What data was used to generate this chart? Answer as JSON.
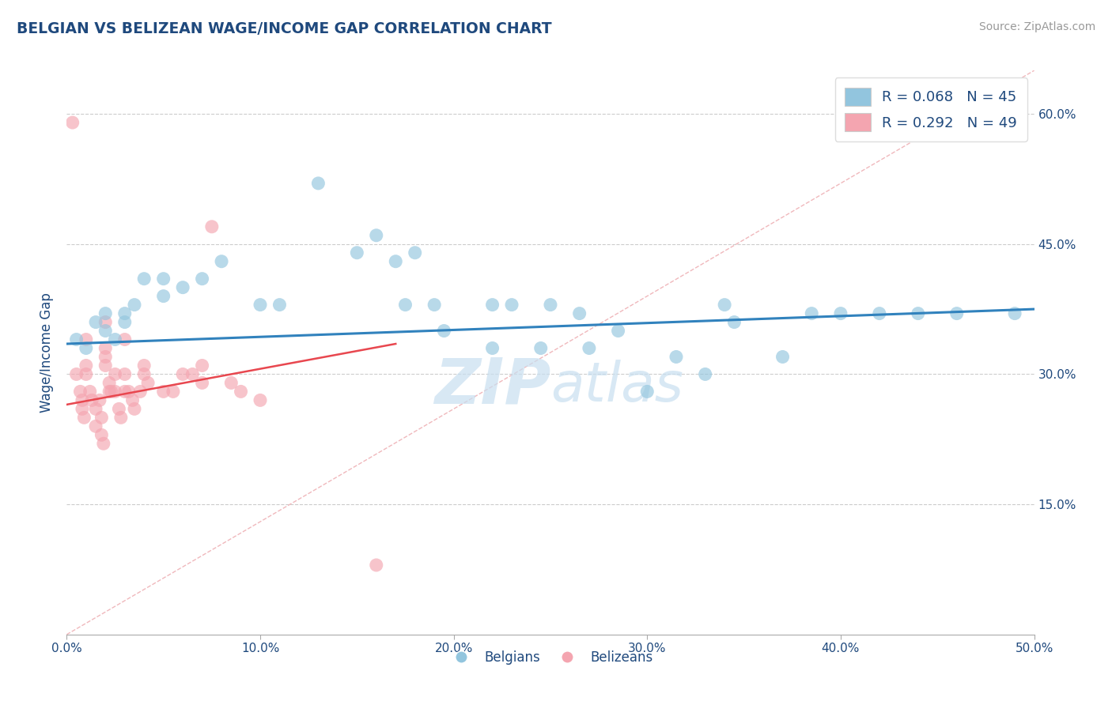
{
  "title": "BELGIAN VS BELIZEAN WAGE/INCOME GAP CORRELATION CHART",
  "source": "Source: ZipAtlas.com",
  "ylabel": "Wage/Income Gap",
  "xlim": [
    0.0,
    0.5
  ],
  "ylim": [
    0.0,
    0.65
  ],
  "xtick_labels": [
    "0.0%",
    "10.0%",
    "20.0%",
    "30.0%",
    "40.0%",
    "50.0%"
  ],
  "xtick_vals": [
    0.0,
    0.1,
    0.2,
    0.3,
    0.4,
    0.5
  ],
  "ytick_labels_right": [
    "15.0%",
    "30.0%",
    "45.0%",
    "60.0%"
  ],
  "ytick_vals_right": [
    0.15,
    0.3,
    0.45,
    0.6
  ],
  "legend_blue_label": "R = 0.068   N = 45",
  "legend_pink_label": "R = 0.292   N = 49",
  "legend_bottom_blue": "Belgians",
  "legend_bottom_pink": "Belizeans",
  "blue_color": "#92c5de",
  "pink_color": "#f4a5b0",
  "blue_line_color": "#3182bd",
  "pink_line_color": "#e8474f",
  "diag_line_color": "#f0b8bc",
  "grid_color": "#cccccc",
  "watermark_color": "#c8dff0",
  "title_color": "#1f497d",
  "axis_label_color": "#1f497d",
  "legend_text_color": "#1f497d",
  "blue_scatter_x": [
    0.005,
    0.01,
    0.015,
    0.02,
    0.02,
    0.025,
    0.03,
    0.03,
    0.035,
    0.04,
    0.05,
    0.05,
    0.06,
    0.07,
    0.08,
    0.1,
    0.11,
    0.13,
    0.15,
    0.16,
    0.17,
    0.175,
    0.18,
    0.19,
    0.195,
    0.22,
    0.22,
    0.23,
    0.245,
    0.25,
    0.265,
    0.27,
    0.285,
    0.3,
    0.315,
    0.33,
    0.34,
    0.345,
    0.37,
    0.385,
    0.4,
    0.42,
    0.44,
    0.46,
    0.49
  ],
  "blue_scatter_y": [
    0.34,
    0.33,
    0.36,
    0.35,
    0.37,
    0.34,
    0.37,
    0.36,
    0.38,
    0.41,
    0.41,
    0.39,
    0.4,
    0.41,
    0.43,
    0.38,
    0.38,
    0.52,
    0.44,
    0.46,
    0.43,
    0.38,
    0.44,
    0.38,
    0.35,
    0.38,
    0.33,
    0.38,
    0.33,
    0.38,
    0.37,
    0.33,
    0.35,
    0.28,
    0.32,
    0.3,
    0.38,
    0.36,
    0.32,
    0.37,
    0.37,
    0.37,
    0.37,
    0.37,
    0.37
  ],
  "pink_scatter_x": [
    0.003,
    0.005,
    0.007,
    0.008,
    0.008,
    0.009,
    0.01,
    0.01,
    0.01,
    0.012,
    0.013,
    0.015,
    0.015,
    0.017,
    0.018,
    0.018,
    0.019,
    0.02,
    0.02,
    0.02,
    0.02,
    0.022,
    0.022,
    0.023,
    0.025,
    0.025,
    0.027,
    0.028,
    0.03,
    0.03,
    0.03,
    0.032,
    0.034,
    0.035,
    0.038,
    0.04,
    0.04,
    0.042,
    0.05,
    0.055,
    0.06,
    0.065,
    0.07,
    0.07,
    0.075,
    0.085,
    0.09,
    0.1,
    0.16
  ],
  "pink_scatter_y": [
    0.59,
    0.3,
    0.28,
    0.27,
    0.26,
    0.25,
    0.34,
    0.31,
    0.3,
    0.28,
    0.27,
    0.26,
    0.24,
    0.27,
    0.25,
    0.23,
    0.22,
    0.36,
    0.33,
    0.32,
    0.31,
    0.29,
    0.28,
    0.28,
    0.3,
    0.28,
    0.26,
    0.25,
    0.34,
    0.3,
    0.28,
    0.28,
    0.27,
    0.26,
    0.28,
    0.31,
    0.3,
    0.29,
    0.28,
    0.28,
    0.3,
    0.3,
    0.31,
    0.29,
    0.47,
    0.29,
    0.28,
    0.27,
    0.08
  ],
  "blue_line_x": [
    0.0,
    0.5
  ],
  "blue_line_y": [
    0.335,
    0.375
  ],
  "pink_line_x": [
    0.0,
    0.17
  ],
  "pink_line_y": [
    0.265,
    0.335
  ],
  "diag_line_x": [
    0.0,
    0.5
  ],
  "diag_line_y": [
    0.0,
    0.65
  ]
}
